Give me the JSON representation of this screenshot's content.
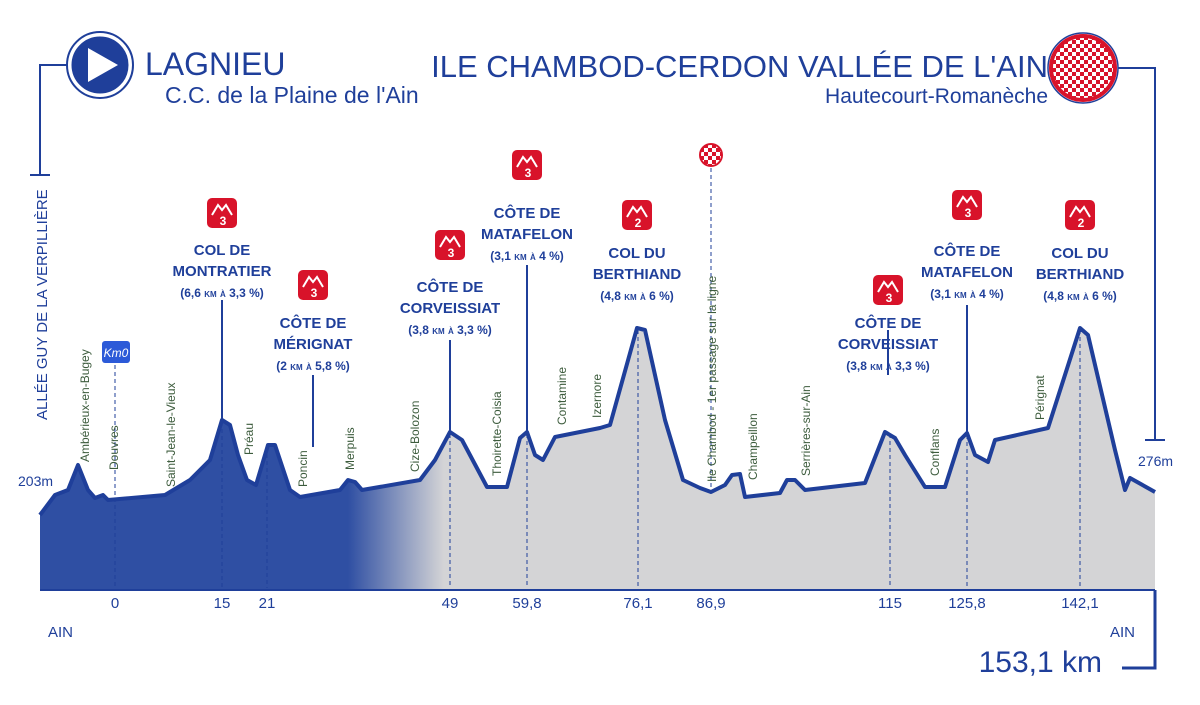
{
  "start": {
    "name": "LAGNIEU",
    "subtitle": "C.C. de la Plaine de l'Ain",
    "street": "ALLÉE GUY DE LA VERPILLIÈRE",
    "altitude": "203m",
    "department": "AIN"
  },
  "finish": {
    "name": "ILE CHAMBOD-CERDON VALLÉE DE L'AIN",
    "subtitle": "Hautecourt-Romanèche",
    "altitude": "276m",
    "department": "AIN"
  },
  "total_distance": "153,1 km",
  "km0": "Km0",
  "km_markers": [
    "0",
    "15",
    "21",
    "49",
    "59,8",
    "76,1",
    "86,9",
    "115",
    "125,8",
    "142,1"
  ],
  "intermediate": "Ile Chambod - 1er passage sur la ligne",
  "places": [
    "Ambérieux-en-Bugey",
    "Douvres",
    "Saint-Jean-le-Vieux",
    "Préau",
    "Poncin",
    "Merpuis",
    "Cize-Bolozon",
    "Thoirette-Coisia",
    "Contamine",
    "Izernore",
    "Champeillon",
    "Serrières-sur-Ain",
    "Conflans",
    "Pérignat"
  ],
  "climbs": [
    {
      "category": "3",
      "name": [
        "COL DE",
        "MONTRATIER"
      ],
      "detail": "(6,6 km à 3,3 %)"
    },
    {
      "category": "3",
      "name": [
        "CÔTE DE",
        "MÉRIGNAT"
      ],
      "detail": "(2 km à 5,8 %)"
    },
    {
      "category": "3",
      "name": [
        "CÔTE DE",
        "CORVEISSIAT"
      ],
      "detail": "(3,8 km à 3,3 %)"
    },
    {
      "category": "3",
      "name": [
        "CÔTE DE",
        "MATAFELON"
      ],
      "detail": "(3,1 km à 4 %)"
    },
    {
      "category": "2",
      "name": [
        "COL DU",
        "BERTHIAND"
      ],
      "detail": "(4,8 km à 6 %)"
    },
    {
      "category": "3",
      "name": [
        "CÔTE DE",
        "CORVEISSIAT"
      ],
      "detail": "(3,8 km à 3,3 %)"
    },
    {
      "category": "3",
      "name": [
        "CÔTE DE",
        "MATAFELON"
      ],
      "detail": "(3,1 km à 4 %)"
    },
    {
      "category": "2",
      "name": [
        "COL DU",
        "BERTHIAND"
      ],
      "detail": "(4,8 km à 6 %)"
    }
  ]
}
